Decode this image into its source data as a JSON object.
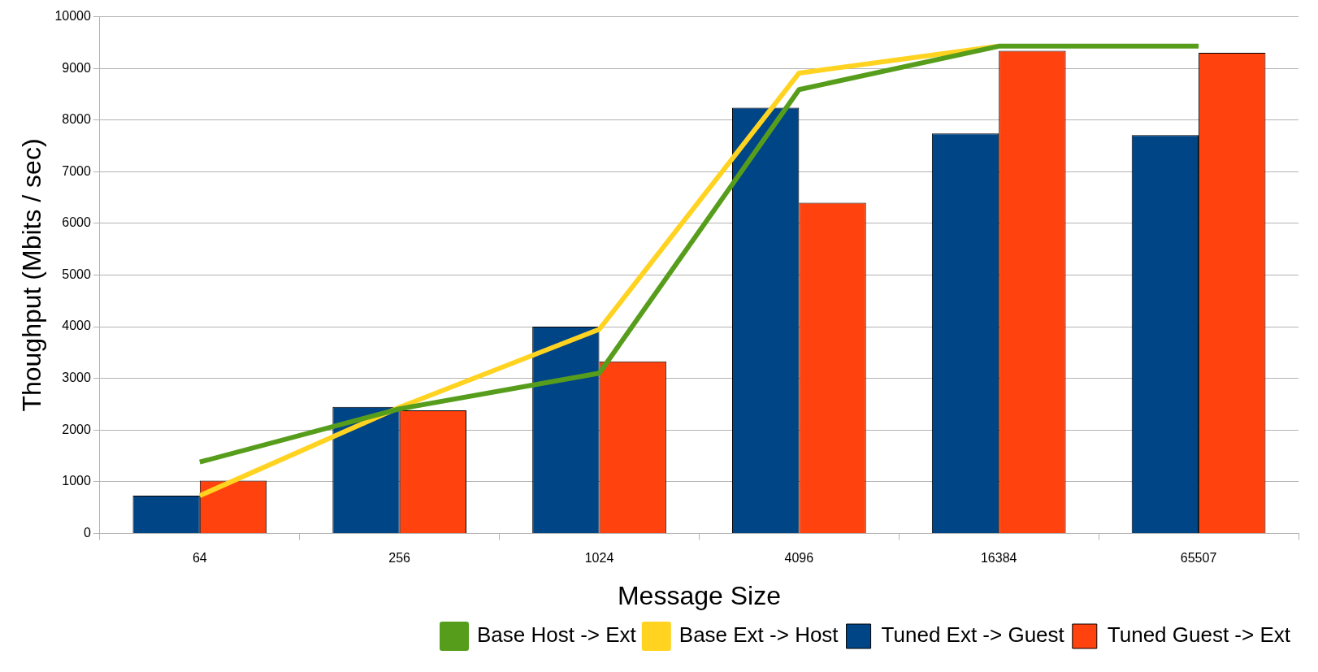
{
  "chart_data": {
    "type": "bar",
    "xlabel": "Message Size",
    "ylabel": "Thoughput (Mbits / sec)",
    "categories": [
      "64",
      "256",
      "1024",
      "4096",
      "16384",
      "65507"
    ],
    "series": [
      {
        "name": "Tuned Ext -> Guest",
        "color": "#004586",
        "values": [
          730,
          2450,
          4000,
          8240,
          7740,
          7710
        ]
      },
      {
        "name": "Tuned Guest -> Ext",
        "color": "#ff420e",
        "values": [
          1020,
          2380,
          3330,
          6400,
          9340,
          9300
        ]
      },
      {
        "name": "Base Ext -> Host",
        "type": "line",
        "color": "#ffd320",
        "values": [
          730,
          2440,
          3950,
          8910,
          9430,
          null
        ]
      },
      {
        "name": "Base Host -> Ext",
        "type": "line",
        "color": "#579d1c",
        "values": [
          1380,
          2410,
          3100,
          8590,
          9430,
          9430
        ]
      }
    ],
    "ylim": [
      0,
      10000
    ],
    "yticks": [
      0,
      1000,
      2000,
      3000,
      4000,
      5000,
      6000,
      7000,
      8000,
      9000,
      10000
    ],
    "grid": "y",
    "legend": "bottom"
  }
}
